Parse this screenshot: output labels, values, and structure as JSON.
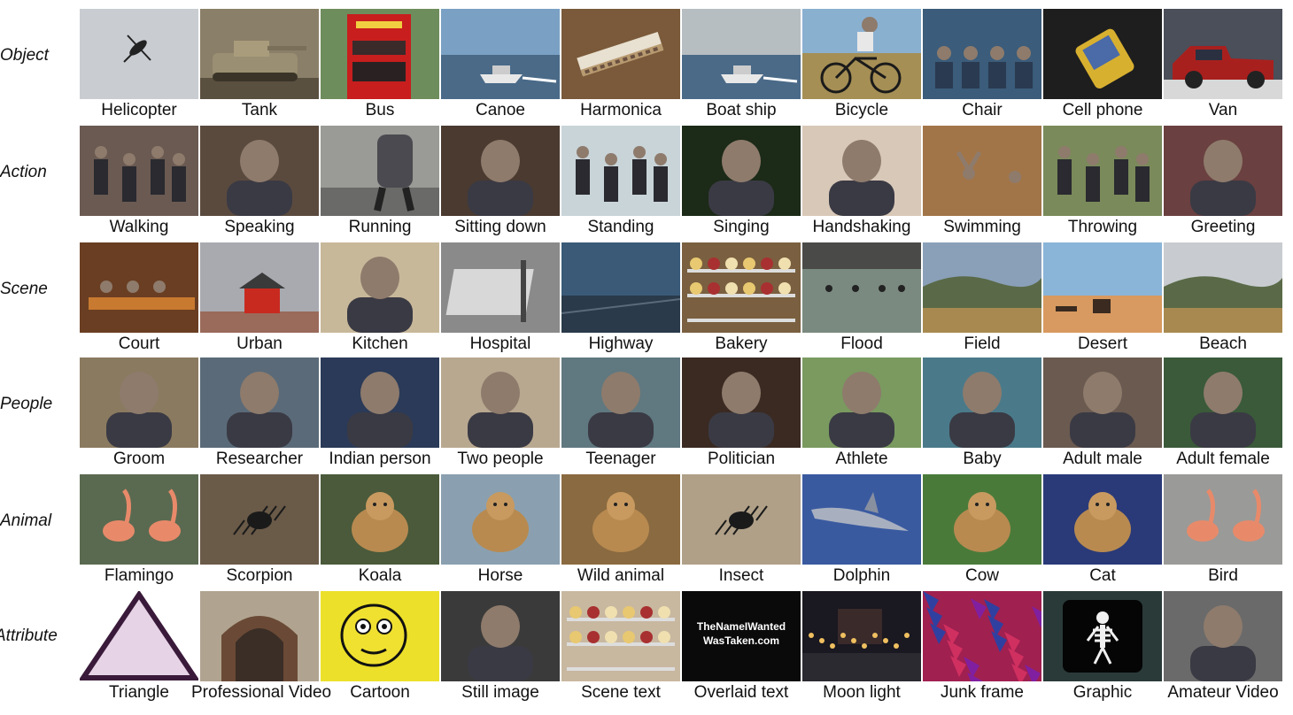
{
  "rows": [
    {
      "label": "Object",
      "items": [
        {
          "caption": "Helicopter",
          "icon": "helicopter",
          "bg": "#c9cdd2"
        },
        {
          "caption": "Tank",
          "icon": "tank",
          "bg": "#8a7f68"
        },
        {
          "caption": "Bus",
          "icon": "bus",
          "bg": "#6e8d5c"
        },
        {
          "caption": "Canoe",
          "icon": "boat",
          "bg": "#7aa1c4"
        },
        {
          "caption": "Harmonica",
          "icon": "harmonica",
          "bg": "#7a5a3a"
        },
        {
          "caption": "Boat ship",
          "icon": "boat",
          "bg": "#b7bec2"
        },
        {
          "caption": "Bicycle",
          "icon": "bicycle",
          "bg": "#a58f55"
        },
        {
          "caption": "Chair",
          "icon": "chair",
          "bg": "#3b5c7a"
        },
        {
          "caption": "Cell phone",
          "icon": "phone",
          "bg": "#1e1e1e"
        },
        {
          "caption": "Van",
          "icon": "van",
          "bg": "#4a4f5a"
        }
      ]
    },
    {
      "label": "Action",
      "items": [
        {
          "caption": "Walking",
          "icon": "walker",
          "bg": "#6a5a52"
        },
        {
          "caption": "Speaking",
          "icon": "person",
          "bg": "#5a4a3e"
        },
        {
          "caption": "Running",
          "icon": "runner",
          "bg": "#9a9a96"
        },
        {
          "caption": "Sitting down",
          "icon": "person",
          "bg": "#4a3a30"
        },
        {
          "caption": "Standing",
          "icon": "walker",
          "bg": "#c8d4d8"
        },
        {
          "caption": "Singing",
          "icon": "person",
          "bg": "#1c2a18"
        },
        {
          "caption": "Handshaking",
          "icon": "person",
          "bg": "#d8c8b8"
        },
        {
          "caption": "Swimming",
          "icon": "swimmer",
          "bg": "#a27548"
        },
        {
          "caption": "Throwing",
          "icon": "walker",
          "bg": "#7a8a5a"
        },
        {
          "caption": "Greeting",
          "icon": "person",
          "bg": "#6a4040"
        }
      ]
    },
    {
      "label": "Scene",
      "items": [
        {
          "caption": "Court",
          "icon": "table",
          "bg": "#6a3e22"
        },
        {
          "caption": "Urban",
          "icon": "house",
          "bg": "#a8aab0"
        },
        {
          "caption": "Kitchen",
          "icon": "person",
          "bg": "#c8b89a"
        },
        {
          "caption": "Hospital",
          "icon": "bed",
          "bg": "#8a8a8a"
        },
        {
          "caption": "Highway",
          "icon": "road",
          "bg": "#3a5a78"
        },
        {
          "caption": "Bakery",
          "icon": "shelf",
          "bg": "#7a6040"
        },
        {
          "caption": "Flood",
          "icon": "water",
          "bg": "#7a8a80"
        },
        {
          "caption": "Field",
          "icon": "hills",
          "bg": "#8aa0b8"
        },
        {
          "caption": "Desert",
          "icon": "desert",
          "bg": "#8ab4d8"
        },
        {
          "caption": "Beach",
          "icon": "hills",
          "bg": "#c8ccd0"
        }
      ]
    },
    {
      "label": "People",
      "items": [
        {
          "caption": "Groom",
          "icon": "person",
          "bg": "#8a7a60"
        },
        {
          "caption": "Researcher",
          "icon": "person",
          "bg": "#5a6a78"
        },
        {
          "caption": "Indian person",
          "icon": "person",
          "bg": "#2a3a58"
        },
        {
          "caption": "Two people",
          "icon": "person",
          "bg": "#b8a890"
        },
        {
          "caption": "Teenager",
          "icon": "person",
          "bg": "#607880"
        },
        {
          "caption": "Politician",
          "icon": "person",
          "bg": "#3a2a22"
        },
        {
          "caption": "Athlete",
          "icon": "person",
          "bg": "#7a9a60"
        },
        {
          "caption": "Baby",
          "icon": "person",
          "bg": "#4a7a8a"
        },
        {
          "caption": "Adult male",
          "icon": "person",
          "bg": "#6a5a50"
        },
        {
          "caption": "Adult female",
          "icon": "person",
          "bg": "#3a5a3a"
        }
      ]
    },
    {
      "label": "Animal",
      "items": [
        {
          "caption": "Flamingo",
          "icon": "bird",
          "bg": "#5a6a50"
        },
        {
          "caption": "Scorpion",
          "icon": "insect",
          "bg": "#6a5a48"
        },
        {
          "caption": "Koala",
          "icon": "animal",
          "bg": "#4a5a3a"
        },
        {
          "caption": "Horse",
          "icon": "animal",
          "bg": "#8aa0b0"
        },
        {
          "caption": "Wild animal",
          "icon": "animal",
          "bg": "#8a6a40"
        },
        {
          "caption": "Insect",
          "icon": "insect",
          "bg": "#b0a088"
        },
        {
          "caption": "Dolphin",
          "icon": "fish",
          "bg": "#3a5aa0"
        },
        {
          "caption": "Cow",
          "icon": "animal",
          "bg": "#4a7a3a"
        },
        {
          "caption": "Cat",
          "icon": "animal",
          "bg": "#2a3a78"
        },
        {
          "caption": "Bird",
          "icon": "bird",
          "bg": "#9a9a98"
        }
      ]
    },
    {
      "label": "Attribute",
      "items": [
        {
          "caption": "Triangle",
          "icon": "triangle",
          "bg": "#ffffff"
        },
        {
          "caption": "Professional Video",
          "icon": "arch",
          "bg": "#b0a490"
        },
        {
          "caption": "Cartoon",
          "icon": "cartoon",
          "bg": "#ece02a"
        },
        {
          "caption": "Still image",
          "icon": "person",
          "bg": "#3a3a3a"
        },
        {
          "caption": "Scene text",
          "icon": "shelf",
          "bg": "#c8b8a0"
        },
        {
          "caption": "Overlaid text",
          "icon": "text",
          "bg": "#0a0a0a",
          "overlay_text": [
            "TheNameIWanted",
            "WasTaken.com"
          ]
        },
        {
          "caption": "Moon light",
          "icon": "night",
          "bg": "#1a1820"
        },
        {
          "caption": "Junk frame",
          "icon": "junk",
          "bg": "#a02050"
        },
        {
          "caption": "Graphic",
          "icon": "skeleton",
          "bg": "#2a3a38"
        },
        {
          "caption": "Amateur Video",
          "icon": "person",
          "bg": "#6a6a6a"
        }
      ]
    }
  ]
}
